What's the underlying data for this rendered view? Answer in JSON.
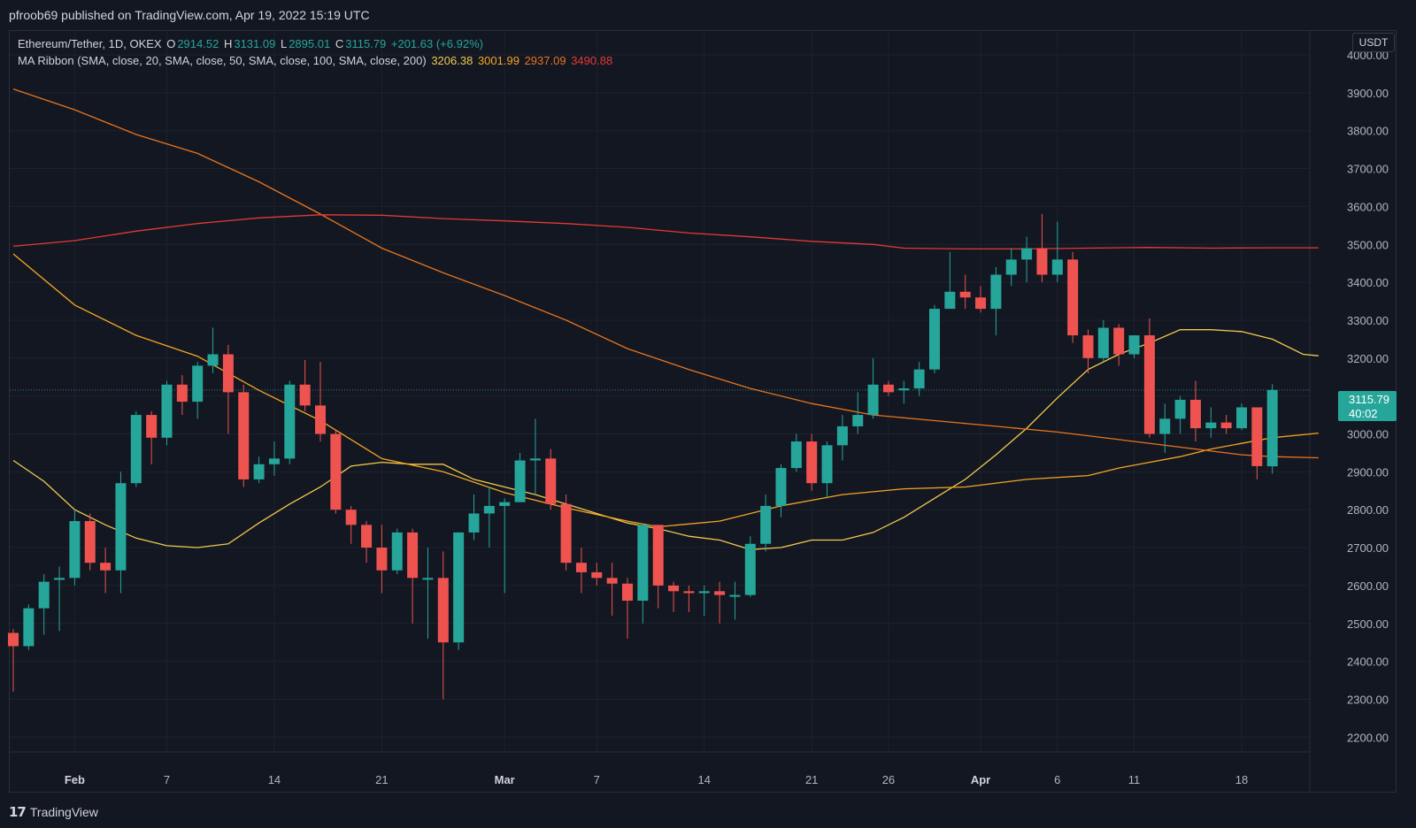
{
  "publisher": "pfroob69 published on TradingView.com, Apr 19, 2022 15:19 UTC",
  "legend": {
    "symbol": "Ethereum/Tether, 1D, OKEX",
    "o_label": "O",
    "o_value": "2914.52",
    "h_label": "H",
    "h_value": "3131.09",
    "l_label": "L",
    "l_value": "2895.01",
    "c_label": "C",
    "c_value": "3115.79",
    "change": "+201.63 (+6.92%)",
    "ma_label": "MA Ribbon (SMA, close, 20, SMA, close, 50, SMA, close, 100, SMA, close, 200)",
    "ma_values": [
      "3206.38",
      "3001.99",
      "2937.09",
      "3490.88"
    ]
  },
  "colors": {
    "bg": "#131722",
    "up": "#26a69a",
    "down": "#ef5350",
    "ma20": "#f2c94c",
    "ma50": "#f5a623",
    "ma100": "#e8741c",
    "ma200": "#e53935"
  },
  "currency_label": "USDT",
  "last_price_tag": {
    "price": "3115.79",
    "countdown": "40:02"
  },
  "footer_brand": "TradingView",
  "chart_data": {
    "type": "candlestick",
    "title": "Ethereum/Tether, 1D, OKEX",
    "ylim": [
      2160,
      4040
    ],
    "y_ticks": [
      "4000.00",
      "3900.00",
      "3800.00",
      "3700.00",
      "3600.00",
      "3500.00",
      "3400.00",
      "3300.00",
      "3200.00",
      "3100.00",
      "3000.00",
      "2900.00",
      "2800.00",
      "2700.00",
      "2600.00",
      "2500.00",
      "2400.00",
      "2300.00",
      "2200.00"
    ],
    "x_ticks": [
      {
        "label": "Feb",
        "index": 4,
        "bold": true
      },
      {
        "label": "7",
        "index": 10
      },
      {
        "label": "14",
        "index": 17
      },
      {
        "label": "21",
        "index": 24
      },
      {
        "label": "Mar",
        "index": 32,
        "bold": true
      },
      {
        "label": "7",
        "index": 38
      },
      {
        "label": "14",
        "index": 45
      },
      {
        "label": "21",
        "index": 52
      },
      {
        "label": "26",
        "index": 57
      },
      {
        "label": "Apr",
        "index": 63,
        "bold": true
      },
      {
        "label": "6",
        "index": 68
      },
      {
        "label": "11",
        "index": 73
      },
      {
        "label": "18",
        "index": 80
      }
    ],
    "candles": [
      [
        2475,
        2440,
        2485,
        2320
      ],
      [
        2440,
        2540,
        2550,
        2430
      ],
      [
        2540,
        2610,
        2630,
        2470
      ],
      [
        2615,
        2620,
        2650,
        2480
      ],
      [
        2620,
        2770,
        2800,
        2600
      ],
      [
        2770,
        2660,
        2790,
        2640
      ],
      [
        2660,
        2640,
        2700,
        2580
      ],
      [
        2640,
        2870,
        2900,
        2580
      ],
      [
        2870,
        3050,
        3060,
        2860
      ],
      [
        3050,
        2990,
        3060,
        2920
      ],
      [
        2990,
        3130,
        3140,
        2970
      ],
      [
        3130,
        3085,
        3155,
        3050
      ],
      [
        3085,
        3180,
        3190,
        3040
      ],
      [
        3180,
        3210,
        3280,
        3160
      ],
      [
        3210,
        3110,
        3235,
        3000
      ],
      [
        3110,
        2880,
        3130,
        2860
      ],
      [
        2880,
        2920,
        2940,
        2870
      ],
      [
        2920,
        2935,
        2980,
        2890
      ],
      [
        2935,
        3130,
        3140,
        2920
      ],
      [
        3130,
        3075,
        3195,
        3060
      ],
      [
        3075,
        3000,
        3190,
        2980
      ],
      [
        3000,
        2800,
        3010,
        2790
      ],
      [
        2800,
        2760,
        2810,
        2710
      ],
      [
        2760,
        2700,
        2770,
        2660
      ],
      [
        2700,
        2640,
        2760,
        2580
      ],
      [
        2640,
        2740,
        2750,
        2630
      ],
      [
        2740,
        2620,
        2750,
        2500
      ],
      [
        2620,
        2620,
        2700,
        2460
      ],
      [
        2620,
        2450,
        2690,
        2300
      ],
      [
        2450,
        2740,
        2740,
        2430
      ],
      [
        2740,
        2790,
        2840,
        2720
      ],
      [
        2790,
        2810,
        2860,
        2700
      ],
      [
        2810,
        2820,
        2830,
        2580
      ],
      [
        2820,
        2930,
        2950,
        2820
      ],
      [
        2930,
        2935,
        3040,
        2840
      ],
      [
        2935,
        2815,
        2960,
        2800
      ],
      [
        2815,
        2660,
        2840,
        2640
      ],
      [
        2660,
        2635,
        2700,
        2580
      ],
      [
        2635,
        2620,
        2660,
        2600
      ],
      [
        2620,
        2605,
        2660,
        2520
      ],
      [
        2605,
        2560,
        2620,
        2460
      ],
      [
        2560,
        2760,
        2760,
        2500
      ],
      [
        2760,
        2600,
        2760,
        2540
      ],
      [
        2600,
        2585,
        2610,
        2530
      ],
      [
        2585,
        2580,
        2600,
        2530
      ],
      [
        2580,
        2585,
        2600,
        2520
      ],
      [
        2585,
        2575,
        2610,
        2500
      ],
      [
        2575,
        2575,
        2610,
        2510
      ],
      [
        2575,
        2710,
        2730,
        2570
      ],
      [
        2710,
        2810,
        2840,
        2690
      ],
      [
        2810,
        2910,
        2920,
        2780
      ],
      [
        2910,
        2980,
        3000,
        2900
      ],
      [
        2980,
        2870,
        3000,
        2850
      ],
      [
        2870,
        2970,
        2980,
        2830
      ],
      [
        2970,
        3020,
        3050,
        2930
      ],
      [
        3020,
        3050,
        3110,
        3000
      ],
      [
        3050,
        3130,
        3200,
        3040
      ],
      [
        3130,
        3110,
        3140,
        3100
      ],
      [
        3115,
        3120,
        3140,
        3080
      ],
      [
        3120,
        3170,
        3190,
        3100
      ],
      [
        3170,
        3330,
        3340,
        3160
      ],
      [
        3330,
        3375,
        3480,
        3330
      ],
      [
        3375,
        3360,
        3420,
        3330
      ],
      [
        3360,
        3330,
        3390,
        3320
      ],
      [
        3330,
        3420,
        3440,
        3260
      ],
      [
        3420,
        3460,
        3490,
        3390
      ],
      [
        3460,
        3490,
        3520,
        3400
      ],
      [
        3490,
        3420,
        3580,
        3400
      ],
      [
        3420,
        3460,
        3560,
        3400
      ],
      [
        3460,
        3260,
        3480,
        3240
      ],
      [
        3260,
        3200,
        3275,
        3160
      ],
      [
        3200,
        3280,
        3300,
        3190
      ],
      [
        3280,
        3210,
        3290,
        3180
      ],
      [
        3210,
        3260,
        3260,
        3200
      ],
      [
        3260,
        3000,
        3305,
        2990
      ],
      [
        3000,
        3040,
        3080,
        2950
      ],
      [
        3040,
        3090,
        3100,
        3000
      ],
      [
        3090,
        3015,
        3140,
        2980
      ],
      [
        3015,
        3030,
        3070,
        2990
      ],
      [
        3030,
        3015,
        3050,
        3000
      ],
      [
        3015,
        3070,
        3080,
        3010
      ],
      [
        3070,
        2915,
        3070,
        2880
      ],
      [
        2914.52,
        3115.79,
        3131.09,
        2895.01
      ]
    ],
    "series": [
      {
        "name": "SMA 20",
        "color": "#f2c94c",
        "points": [
          [
            0,
            2930
          ],
          [
            2,
            2875
          ],
          [
            4,
            2800
          ],
          [
            6,
            2760
          ],
          [
            8,
            2725
          ],
          [
            10,
            2705
          ],
          [
            12,
            2700
          ],
          [
            14,
            2710
          ],
          [
            16,
            2765
          ],
          [
            18,
            2815
          ],
          [
            20,
            2860
          ],
          [
            22,
            2915
          ],
          [
            24,
            2925
          ],
          [
            26,
            2920
          ],
          [
            28,
            2920
          ],
          [
            30,
            2880
          ],
          [
            32,
            2860
          ],
          [
            34,
            2840
          ],
          [
            36,
            2815
          ],
          [
            38,
            2790
          ],
          [
            40,
            2765
          ],
          [
            42,
            2750
          ],
          [
            44,
            2730
          ],
          [
            46,
            2720
          ],
          [
            48,
            2695
          ],
          [
            50,
            2700
          ],
          [
            52,
            2720
          ],
          [
            54,
            2720
          ],
          [
            56,
            2740
          ],
          [
            58,
            2780
          ],
          [
            60,
            2830
          ],
          [
            62,
            2880
          ],
          [
            64,
            2945
          ],
          [
            66,
            3015
          ],
          [
            68,
            3095
          ],
          [
            70,
            3170
          ],
          [
            72,
            3210
          ],
          [
            74,
            3240
          ],
          [
            76,
            3275
          ],
          [
            78,
            3275
          ],
          [
            80,
            3270
          ],
          [
            82,
            3250
          ],
          [
            84,
            3210
          ],
          [
            85,
            3206
          ]
        ]
      },
      {
        "name": "SMA 50",
        "color": "#f5a623",
        "points": [
          [
            0,
            3475
          ],
          [
            4,
            3340
          ],
          [
            8,
            3260
          ],
          [
            12,
            3205
          ],
          [
            16,
            3115
          ],
          [
            20,
            3035
          ],
          [
            24,
            2935
          ],
          [
            28,
            2900
          ],
          [
            32,
            2845
          ],
          [
            36,
            2805
          ],
          [
            40,
            2770
          ],
          [
            42,
            2755
          ],
          [
            46,
            2770
          ],
          [
            50,
            2810
          ],
          [
            54,
            2840
          ],
          [
            58,
            2855
          ],
          [
            62,
            2860
          ],
          [
            66,
            2880
          ],
          [
            70,
            2890
          ],
          [
            72,
            2910
          ],
          [
            74,
            2925
          ],
          [
            76,
            2940
          ],
          [
            78,
            2960
          ],
          [
            80,
            2975
          ],
          [
            82,
            2990
          ],
          [
            84,
            2998
          ],
          [
            85,
            3002
          ]
        ]
      },
      {
        "name": "SMA 100",
        "color": "#e8741c",
        "points": [
          [
            0,
            3910
          ],
          [
            4,
            3855
          ],
          [
            8,
            3790
          ],
          [
            12,
            3740
          ],
          [
            16,
            3665
          ],
          [
            20,
            3580
          ],
          [
            24,
            3490
          ],
          [
            28,
            3425
          ],
          [
            32,
            3365
          ],
          [
            36,
            3300
          ],
          [
            40,
            3225
          ],
          [
            44,
            3170
          ],
          [
            48,
            3120
          ],
          [
            52,
            3080
          ],
          [
            56,
            3050
          ],
          [
            60,
            3035
          ],
          [
            64,
            3020
          ],
          [
            68,
            3005
          ],
          [
            72,
            2985
          ],
          [
            76,
            2965
          ],
          [
            80,
            2945
          ],
          [
            82,
            2940
          ],
          [
            85,
            2937
          ]
        ]
      },
      {
        "name": "SMA 200",
        "color": "#e53935",
        "points": [
          [
            0,
            3495
          ],
          [
            4,
            3510
          ],
          [
            8,
            3535
          ],
          [
            12,
            3555
          ],
          [
            16,
            3570
          ],
          [
            20,
            3578
          ],
          [
            24,
            3577
          ],
          [
            28,
            3568
          ],
          [
            32,
            3562
          ],
          [
            36,
            3555
          ],
          [
            40,
            3545
          ],
          [
            44,
            3530
          ],
          [
            48,
            3520
          ],
          [
            52,
            3508
          ],
          [
            56,
            3500
          ],
          [
            58,
            3490
          ],
          [
            62,
            3488
          ],
          [
            66,
            3488
          ],
          [
            70,
            3490
          ],
          [
            74,
            3492
          ],
          [
            78,
            3490
          ],
          [
            82,
            3491
          ],
          [
            85,
            3491
          ]
        ]
      }
    ]
  }
}
